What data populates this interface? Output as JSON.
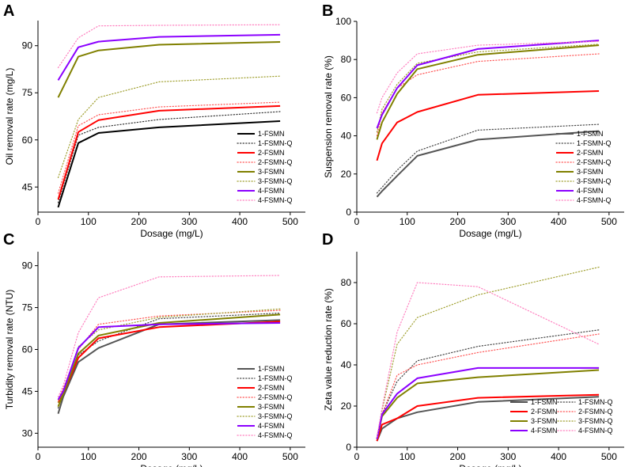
{
  "figure": {
    "dosage_label": "Dosage (mg/L)"
  },
  "chart_data": [
    {
      "type": "line",
      "panel_letter": "A",
      "ylabel": "Oil removal rate (mg/L)",
      "xlabel": "Dosage (mg/L)",
      "xlim": [
        0,
        530
      ],
      "ylim": [
        37,
        98
      ],
      "xticks": [
        0,
        100,
        200,
        300,
        400,
        500
      ],
      "yticks": [
        45,
        60,
        75,
        90
      ],
      "legend_position": "right",
      "legend_columns": 1,
      "x": [
        40,
        80,
        120,
        240,
        480
      ],
      "series": [
        {
          "name": "1-FSMN",
          "color": "#000000",
          "style": "solid",
          "values": [
            38.5,
            59,
            62.2,
            64,
            66
          ]
        },
        {
          "name": "1-FSMN-Q",
          "color": "#333333",
          "style": "dotted",
          "values": [
            40,
            61.5,
            64,
            66.5,
            69
          ]
        },
        {
          "name": "2-FSMN",
          "color": "#ff0000",
          "style": "solid",
          "values": [
            41,
            62.5,
            66.3,
            69.3,
            70.8
          ]
        },
        {
          "name": "2-FSMN-Q",
          "color": "#ff5555",
          "style": "dotted",
          "values": [
            43,
            64.5,
            68,
            70.5,
            72
          ]
        },
        {
          "name": "3-FSMN",
          "color": "#808000",
          "style": "solid",
          "values": [
            73.5,
            86.5,
            88.5,
            90.3,
            91.2
          ]
        },
        {
          "name": "3-FSMN-Q",
          "color": "#a0a030",
          "style": "dotted",
          "values": [
            48,
            66.5,
            73.5,
            78.5,
            80.3
          ]
        },
        {
          "name": "4-FSMN",
          "color": "#8b00ff",
          "style": "solid",
          "values": [
            79,
            89.5,
            91.3,
            92.8,
            93.5
          ]
        },
        {
          "name": "4-FSMN-Q",
          "color": "#ff7fbf",
          "style": "dotted",
          "values": [
            83,
            92.5,
            96.3,
            96.5,
            96.7
          ]
        }
      ]
    },
    {
      "type": "line",
      "panel_letter": "B",
      "ylabel": "Suspension removal rate (%)",
      "xlabel": "Dosage (mg/L)",
      "xlim": [
        0,
        530
      ],
      "ylim": [
        0,
        100
      ],
      "xticks": [
        0,
        100,
        200,
        300,
        400,
        500
      ],
      "yticks": [
        0,
        20,
        40,
        60,
        80,
        100
      ],
      "legend_position": "right",
      "legend_columns": 1,
      "x": [
        40,
        50,
        80,
        120,
        240,
        480
      ],
      "series": [
        {
          "name": "1-FSMN",
          "color": "#555555",
          "style": "solid",
          "values": [
            8,
            11,
            19,
            29.5,
            38,
            42.5
          ]
        },
        {
          "name": "1-FSMN-Q",
          "color": "#444444",
          "style": "dotted",
          "values": [
            10,
            13,
            22,
            32,
            43,
            46
          ]
        },
        {
          "name": "2-FSMN",
          "color": "#ff0000",
          "style": "solid",
          "values": [
            27,
            36,
            47,
            52.5,
            61.5,
            63.5
          ]
        },
        {
          "name": "2-FSMN-Q",
          "color": "#ff5555",
          "style": "dotted",
          "values": [
            40,
            52,
            65,
            72,
            79,
            83
          ]
        },
        {
          "name": "3-FSMN",
          "color": "#808000",
          "style": "solid",
          "values": [
            38,
            47,
            62,
            75,
            82.5,
            87.5
          ]
        },
        {
          "name": "3-FSMN-Q",
          "color": "#a0a030",
          "style": "dotted",
          "values": [
            42,
            54,
            67,
            78,
            84,
            88
          ]
        },
        {
          "name": "4-FSMN",
          "color": "#8b00ff",
          "style": "solid",
          "values": [
            44,
            51,
            65,
            77,
            85.5,
            90
          ]
        },
        {
          "name": "4-FSMN-Q",
          "color": "#ff7fbf",
          "style": "dotted",
          "values": [
            52,
            60,
            73,
            83,
            87.5,
            89.5
          ]
        }
      ]
    },
    {
      "type": "line",
      "panel_letter": "C",
      "ylabel": "Turbidity removal rate (NTU)",
      "xlabel": "Dosage (mg/L)",
      "xlim": [
        0,
        530
      ],
      "ylim": [
        25,
        95
      ],
      "xticks": [
        0,
        100,
        200,
        300,
        400,
        500
      ],
      "yticks": [
        30,
        45,
        60,
        75,
        90
      ],
      "legend_position": "right",
      "legend_columns": 1,
      "x": [
        40,
        50,
        80,
        120,
        240,
        480
      ],
      "series": [
        {
          "name": "1-FSMN",
          "color": "#555555",
          "style": "solid",
          "values": [
            37,
            43,
            55.5,
            60.5,
            69,
            70.5
          ]
        },
        {
          "name": "1-FSMN-Q",
          "color": "#444444",
          "style": "dotted",
          "values": [
            39,
            45,
            58,
            63,
            71,
            73
          ]
        },
        {
          "name": "2-FSMN",
          "color": "#ff0000",
          "style": "solid",
          "values": [
            41,
            44,
            57,
            64,
            68,
            70
          ]
        },
        {
          "name": "2-FSMN-Q",
          "color": "#ff5555",
          "style": "dotted",
          "values": [
            42,
            46,
            60,
            69,
            72,
            74
          ]
        },
        {
          "name": "3-FSMN",
          "color": "#808000",
          "style": "solid",
          "values": [
            39.5,
            44,
            58.5,
            65,
            69.5,
            72.5
          ]
        },
        {
          "name": "3-FSMN-Q",
          "color": "#a0a030",
          "style": "dotted",
          "values": [
            41,
            45,
            61,
            67,
            71.5,
            74.5
          ]
        },
        {
          "name": "4-FSMN",
          "color": "#8b00ff",
          "style": "solid",
          "values": [
            42,
            45,
            60.5,
            68,
            69,
            69.5
          ]
        },
        {
          "name": "4-FSMN-Q",
          "color": "#ff7fbf",
          "style": "dotted",
          "values": [
            43,
            47,
            66,
            78.5,
            86,
            86.5
          ]
        }
      ]
    },
    {
      "type": "line",
      "panel_letter": "D",
      "ylabel": "Zeta value reduction rate (%)",
      "xlabel": "Dosage (mg/L)",
      "xlim": [
        0,
        530
      ],
      "ylim": [
        0,
        95
      ],
      "xticks": [
        0,
        100,
        200,
        300,
        400,
        500
      ],
      "yticks": [
        0,
        20,
        40,
        60,
        80
      ],
      "legend_position": "bottom-right",
      "legend_columns": 2,
      "x": [
        40,
        50,
        80,
        120,
        240,
        480
      ],
      "series": [
        {
          "name": "1-FSMN",
          "color": "#555555",
          "style": "solid",
          "values": [
            3,
            9,
            14,
            17,
            22,
            24.5
          ]
        },
        {
          "name": "1-FSMN-Q",
          "color": "#444444",
          "style": "dotted",
          "values": [
            4,
            16,
            32,
            42,
            49,
            57
          ]
        },
        {
          "name": "2-FSMN",
          "color": "#ff0000",
          "style": "solid",
          "values": [
            3,
            11,
            14,
            20,
            24,
            25.5
          ]
        },
        {
          "name": "2-FSMN-Q",
          "color": "#ff5555",
          "style": "dotted",
          "values": [
            4,
            16,
            35,
            40,
            46,
            55
          ]
        },
        {
          "name": "3-FSMN",
          "color": "#808000",
          "style": "solid",
          "values": [
            4,
            15,
            24,
            31,
            34,
            37.5
          ]
        },
        {
          "name": "3-FSMN-Q",
          "color": "#a0a030",
          "style": "dotted",
          "values": [
            5,
            18,
            50,
            63,
            74,
            87.5
          ]
        },
        {
          "name": "4-FSMN",
          "color": "#8b00ff",
          "style": "solid",
          "values": [
            4,
            16,
            26,
            33.5,
            38.5,
            38.5
          ]
        },
        {
          "name": "4-FSMN-Q",
          "color": "#ff7fbf",
          "style": "dotted",
          "values": [
            5,
            19,
            56,
            80,
            78,
            50
          ]
        }
      ]
    }
  ]
}
